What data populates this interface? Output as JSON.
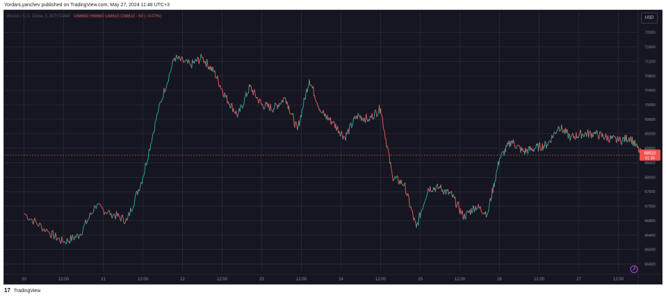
{
  "header": {
    "publish_line": "YordanLyanchev published on TradingView.com, May 27, 2024 11:48 UTC+3"
  },
  "symbol_info": {
    "symbol": "Bitcoin / U.S. Dollar, 5, BITSTAMP",
    "ohlc": "O68660 H68660 L68610 C68610 −50 (−0.07%)"
  },
  "currency_badge": "USD",
  "price_label": {
    "price": "68610",
    "countdown": "01:35"
  },
  "footer": {
    "logo_text": "17",
    "brand": "TradingView"
  },
  "colors": {
    "background": "#151621",
    "grid": "#2f3240",
    "up": "#26a69a",
    "down": "#ef5350",
    "price_line": "#ef5350"
  },
  "chart_data": {
    "type": "line",
    "title": "",
    "xlabel": "",
    "ylabel": "",
    "x_ticks": [
      "20",
      "12:00",
      "21",
      "12:00",
      "22",
      "12:00",
      "23",
      "12:00",
      "24",
      "12:00",
      "25",
      "12:00",
      "26",
      "12:00",
      "27",
      "12:00"
    ],
    "y_ticks": [
      65600,
      66000,
      66400,
      66800,
      67200,
      67600,
      68000,
      68400,
      68800,
      69200,
      69600,
      70000,
      70400,
      70800,
      71200,
      71600,
      72000
    ],
    "ylim": [
      65400,
      72300
    ],
    "grid": true,
    "last_price": 68610,
    "series": [
      {
        "x": [
          0,
          0.6,
          1,
          1.4,
          1.8,
          2.2,
          2.6,
          3,
          3.4,
          3.8,
          4.2,
          4.5,
          4.8,
          5.1,
          5.4,
          5.7,
          6,
          6.3,
          6.6,
          6.9,
          7.2,
          7.5,
          7.8,
          8.1,
          8.4,
          8.7,
          9,
          9.3,
          9.6,
          9.9,
          10.2,
          10.5,
          10.8,
          11.1,
          11.4,
          11.7,
          12,
          12.3,
          12.6,
          12.9,
          13.2,
          13.5,
          13.8,
          14.1,
          14.4,
          14.7,
          15,
          15.3,
          15.6
        ],
        "values": [
          67000,
          66500,
          66200,
          66400,
          67200,
          67000,
          66800,
          68000,
          69900,
          71300,
          71100,
          71300,
          70900,
          70200,
          69700,
          70500,
          70000,
          69900,
          70200,
          69300,
          70700,
          69800,
          69500,
          69100,
          69700,
          69600,
          69900,
          68000,
          67800,
          66600,
          67700,
          67700,
          67500,
          66900,
          67200,
          67000,
          68500,
          69000,
          68700,
          68800,
          68900,
          69400,
          69100,
          69200,
          69200,
          69100,
          69000,
          69100,
          68600
        ]
      }
    ]
  }
}
